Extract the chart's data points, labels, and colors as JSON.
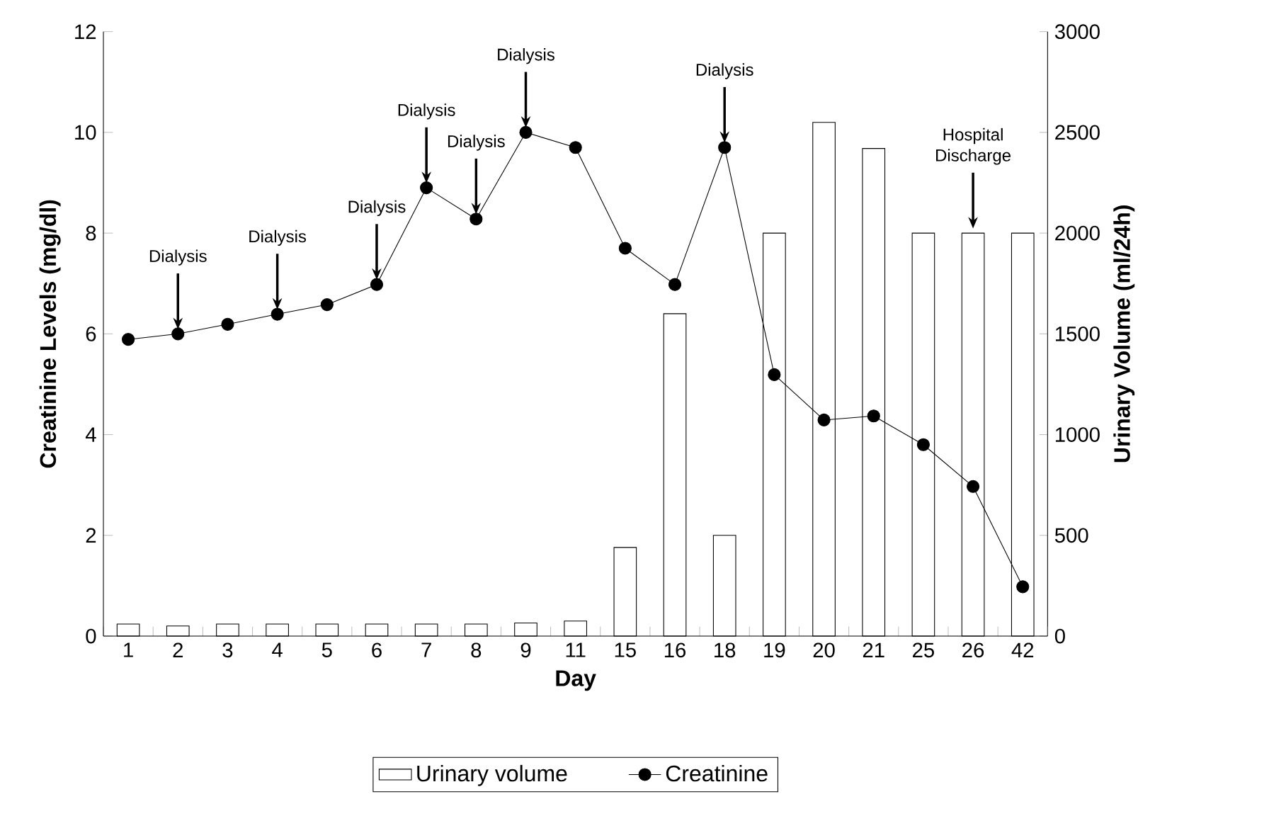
{
  "chart_data": {
    "type": "line",
    "xlabel": "Day",
    "ylabel": "Creatinine Levels (mg/dl)",
    "y2label": "Urinary Volume (ml/24h)",
    "categories": [
      "1",
      "2",
      "3",
      "4",
      "5",
      "6",
      "7",
      "8",
      "9",
      "11",
      "15",
      "16",
      "18",
      "19",
      "20",
      "21",
      "25",
      "26",
      "42"
    ],
    "series": [
      {
        "name": "Urinary volume",
        "type": "bar",
        "axis": "y2",
        "color": "#ffffff",
        "values": [
          60,
          50,
          60,
          60,
          60,
          60,
          60,
          60,
          65,
          75,
          440,
          1600,
          500,
          2000,
          2550,
          2420,
          2000,
          2000,
          2000
        ]
      },
      {
        "name": "Creatinine",
        "marker": "circle",
        "color": "#000000",
        "values": [
          5.89,
          6.0,
          6.19,
          6.39,
          6.58,
          6.98,
          8.9,
          8.28,
          10.0,
          9.7,
          7.7,
          6.98,
          9.7,
          5.19,
          4.29,
          4.37,
          3.8,
          2.97,
          0.98
        ]
      }
    ],
    "ylim": [
      0,
      12
    ],
    "yticks": [
      0,
      2,
      4,
      6,
      8,
      10,
      12
    ],
    "y2lim": [
      0,
      3000
    ],
    "y2ticks": [
      0,
      500,
      1000,
      1500,
      2000,
      2500,
      3000
    ],
    "legend": "bottom",
    "annotations": [
      {
        "text": "Dialysis",
        "x": "2",
        "y": 6.0
      },
      {
        "text": "Dialysis",
        "x": "4",
        "y": 6.39
      },
      {
        "text": "Dialysis",
        "x": "6",
        "y": 6.98
      },
      {
        "text": "Dialysis",
        "x": "7",
        "y": 8.9
      },
      {
        "text": "Dialysis",
        "x": "8",
        "y": 8.28
      },
      {
        "text": "Dialysis",
        "x": "9",
        "y": 10.0
      },
      {
        "text": "Dialysis",
        "x": "18",
        "y": 9.7
      },
      {
        "text": "Hospital Discharge",
        "x": "26",
        "y": 8.0
      }
    ]
  }
}
